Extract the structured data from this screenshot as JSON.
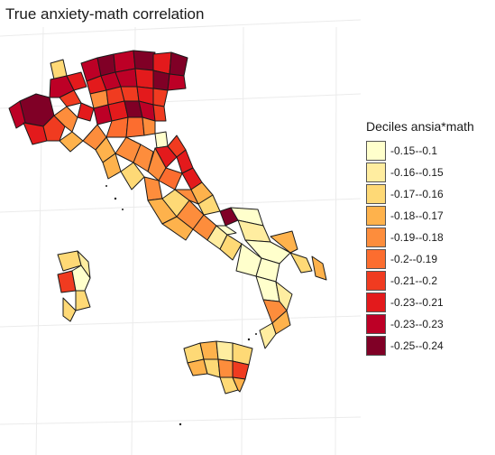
{
  "title": "True anxiety-math correlation",
  "legend": {
    "title": "Deciles ansia*math",
    "items": [
      {
        "label": "-0.15--0.1",
        "color": "#ffffcc"
      },
      {
        "label": "-0.16--0.15",
        "color": "#ffeda0"
      },
      {
        "label": "-0.17--0.16",
        "color": "#fed976"
      },
      {
        "label": "-0.18--0.17",
        "color": "#feb24c"
      },
      {
        "label": "-0.19--0.18",
        "color": "#fd8d3c"
      },
      {
        "label": "-0.2--0.19",
        "color": "#fc6d2f"
      },
      {
        "label": "-0.21--0.2",
        "color": "#f03b20"
      },
      {
        "label": "-0.23--0.21",
        "color": "#e31a1c"
      },
      {
        "label": "-0.23--0.23",
        "color": "#bd0026"
      },
      {
        "label": "-0.25--0.24",
        "color": "#800026"
      }
    ]
  }
}
